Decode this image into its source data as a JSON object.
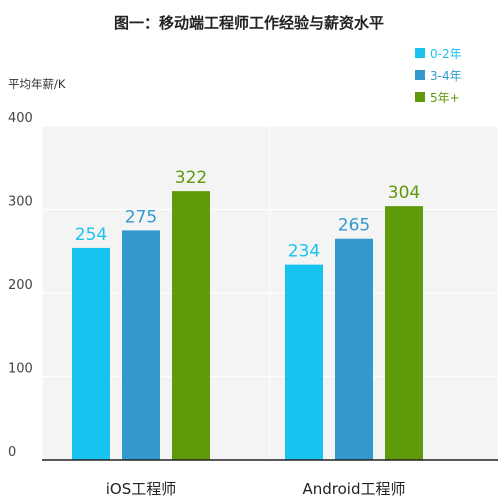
{
  "colors": {
    "background": "#ffffff",
    "plot_background": "#f4f4f4",
    "grid": "#ffffff",
    "axis": "#222222"
  },
  "chart_data": {
    "type": "bar",
    "title": "图一：移动端工程师工作经验与薪资水平",
    "ylabel": "平均年薪/K",
    "xlabel": "",
    "categories": [
      "iOS工程师",
      "Android工程师"
    ],
    "yticks": [
      0,
      100,
      200,
      300,
      400
    ],
    "ylim": [
      0,
      400
    ],
    "grid": true,
    "legend_position": "top-right",
    "series": [
      {
        "name": "0-2年",
        "color": "#19c3f0",
        "values": [
          254,
          234
        ]
      },
      {
        "name": "3-4年",
        "color": "#3399cc",
        "values": [
          275,
          265
        ]
      },
      {
        "name": "5年+",
        "color": "#5e9a0a",
        "values": [
          322,
          304
        ]
      }
    ]
  }
}
